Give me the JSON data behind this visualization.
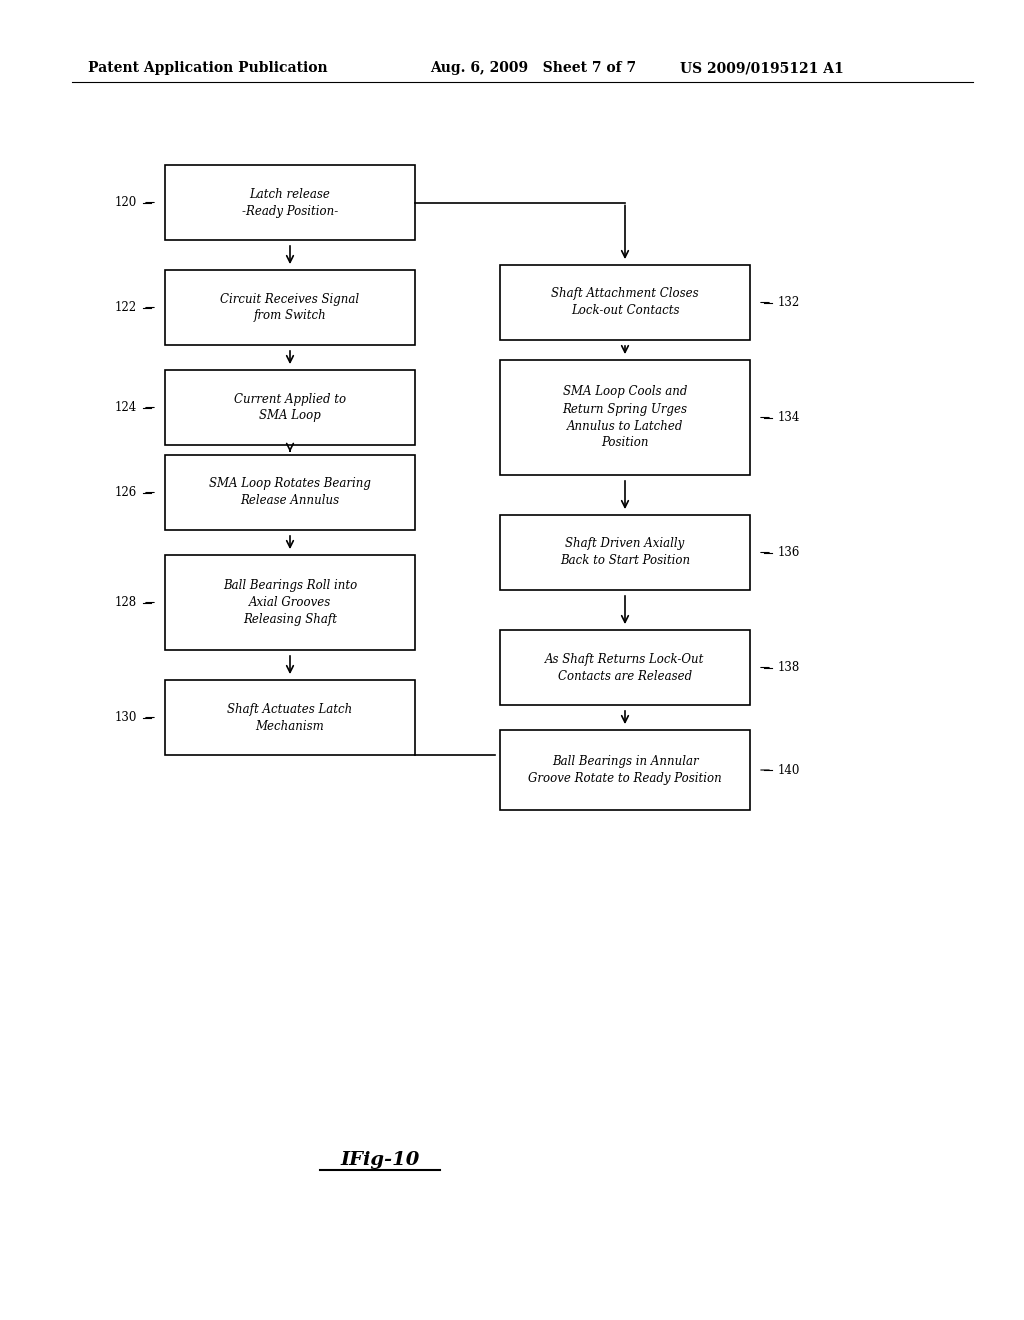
{
  "background_color": "#ffffff",
  "header_left": "Patent Application Publication",
  "header_mid": "Aug. 6, 2009   Sheet 7 of 7",
  "header_right": "US 2009/0195121 A1",
  "figure_label": "IFig-10",
  "left_boxes": [
    {
      "id": 120,
      "label": "Latch release\n-Ready Position-",
      "lines": 2
    },
    {
      "id": 122,
      "label": "Circuit Receives Signal\nfrom Switch",
      "lines": 2
    },
    {
      "id": 124,
      "label": "Current Applied to\nSMA Loop",
      "lines": 2
    },
    {
      "id": 126,
      "label": "SMA Loop Rotates Bearing\nRelease Annulus",
      "lines": 2
    },
    {
      "id": 128,
      "label": "Ball Bearings Roll into\nAxial Grooves\nReleasing Shaft",
      "lines": 3
    },
    {
      "id": 130,
      "label": "Shaft Actuates Latch\nMechanism",
      "lines": 2
    }
  ],
  "right_boxes": [
    {
      "id": 132,
      "label": "Shaft Attachment Closes\nLock-out Contacts",
      "lines": 2
    },
    {
      "id": 134,
      "label": "SMA Loop Cools and\nReturn Spring Urges\nAnnulus to Latched\nPosition",
      "lines": 4
    },
    {
      "id": 136,
      "label": "Shaft Driven Axially\nBack to Start Position",
      "lines": 2
    },
    {
      "id": 138,
      "label": "As Shaft Returns Lock-Out\nContacts are Released",
      "lines": 2
    },
    {
      "id": 140,
      "label": "Ball Bearings in Annular\nGroove Rotate to Ready Position",
      "lines": 2
    }
  ]
}
